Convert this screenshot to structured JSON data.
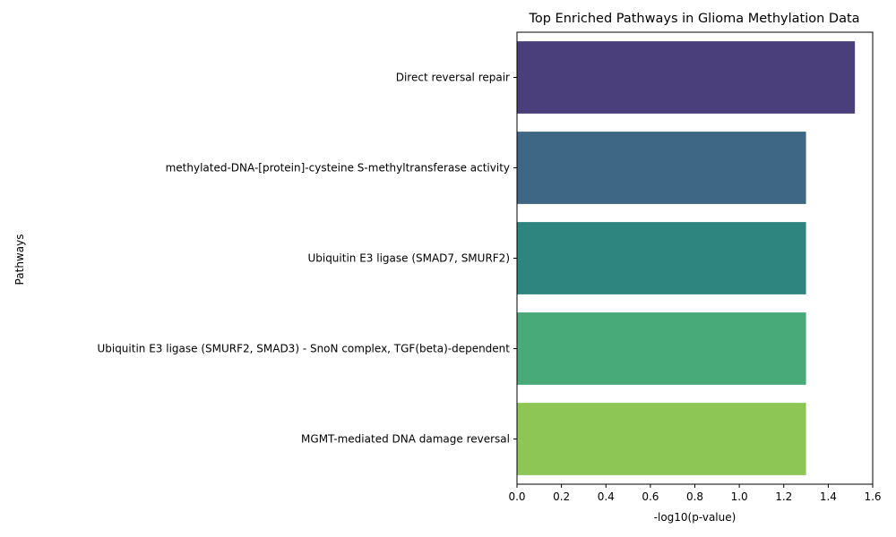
{
  "chart_data": {
    "type": "bar",
    "orientation": "horizontal",
    "title": "Top Enriched Pathways in Glioma Methylation Data",
    "xlabel": "-log10(p-value)",
    "ylabel": "Pathways",
    "categories": [
      "Direct reversal repair",
      "methylated-DNA-[protein]-cysteine S-methyltransferase activity",
      "Ubiquitin E3 ligase (SMAD7, SMURF2)",
      "Ubiquitin E3 ligase (SMURF2, SMAD3) - SnoN complex, TGF(beta)-dependent",
      "MGMT-mediated DNA damage reversal"
    ],
    "values": [
      1.52,
      1.3,
      1.3,
      1.3,
      1.3
    ],
    "colors": [
      "#4a3f7a",
      "#3e6685",
      "#2e8580",
      "#47aa78",
      "#8dc655"
    ],
    "xlim": [
      0,
      1.6
    ],
    "xticks": [
      "0.0",
      "0.2",
      "0.4",
      "0.6",
      "0.8",
      "1.0",
      "1.2",
      "1.4",
      "1.6"
    ],
    "grid": false
  }
}
